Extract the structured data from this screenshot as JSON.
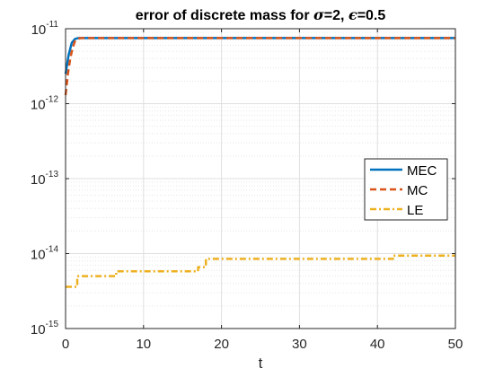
{
  "chart_data": {
    "type": "line",
    "title": "error of discrete mass for σ=2, ϵ=0.5",
    "title_parts": [
      "error of discrete mass for ",
      "σ",
      "=2, ",
      "ϵ",
      "=0.5"
    ],
    "xlabel": "t",
    "ylabel": "",
    "xlim": [
      0,
      50
    ],
    "ylim": [
      1e-15,
      1e-11
    ],
    "yscale": "log",
    "x_ticks": [
      0,
      10,
      20,
      30,
      40,
      50
    ],
    "y_ticks": [
      {
        "value": 1e-15,
        "base": "10",
        "exp": "-15"
      },
      {
        "value": 1e-14,
        "base": "10",
        "exp": "-14"
      },
      {
        "value": 1e-13,
        "base": "10",
        "exp": "-13"
      },
      {
        "value": 1e-12,
        "base": "10",
        "exp": "-12"
      },
      {
        "value": 1e-11,
        "base": "10",
        "exp": "-11"
      }
    ],
    "grid": true,
    "legend_position": "right",
    "series": [
      {
        "name": "MEC",
        "color": "#0072BD",
        "dash": "solid",
        "x": [
          0,
          0.4,
          0.8,
          1.2,
          1.6,
          50
        ],
        "y": [
          2.5e-12,
          4.5e-12,
          6.5e-12,
          7.3e-12,
          7.5e-12,
          7.5e-12
        ]
      },
      {
        "name": "MC",
        "color": "#D95319",
        "dash": "dashed",
        "x": [
          0,
          0.3,
          0.6,
          0.9,
          1.2,
          1.6,
          2.0,
          50
        ],
        "y": [
          1.3e-12,
          2.5e-12,
          4e-12,
          5.5e-12,
          6.8e-12,
          7.4e-12,
          7.5e-12,
          7.5e-12
        ]
      },
      {
        "name": "LE",
        "color": "#EDB120",
        "dash": "dashdot",
        "x": [
          0,
          1.5,
          1.5,
          6.5,
          6.5,
          17,
          17,
          18,
          18,
          42,
          42,
          50
        ],
        "y": [
          3.6e-15,
          3.6e-15,
          5e-15,
          5e-15,
          5.8e-15,
          5.8e-15,
          6.6e-15,
          6.6e-15,
          8.5e-15,
          8.5e-15,
          9.4e-15,
          9.4e-15
        ]
      }
    ]
  }
}
